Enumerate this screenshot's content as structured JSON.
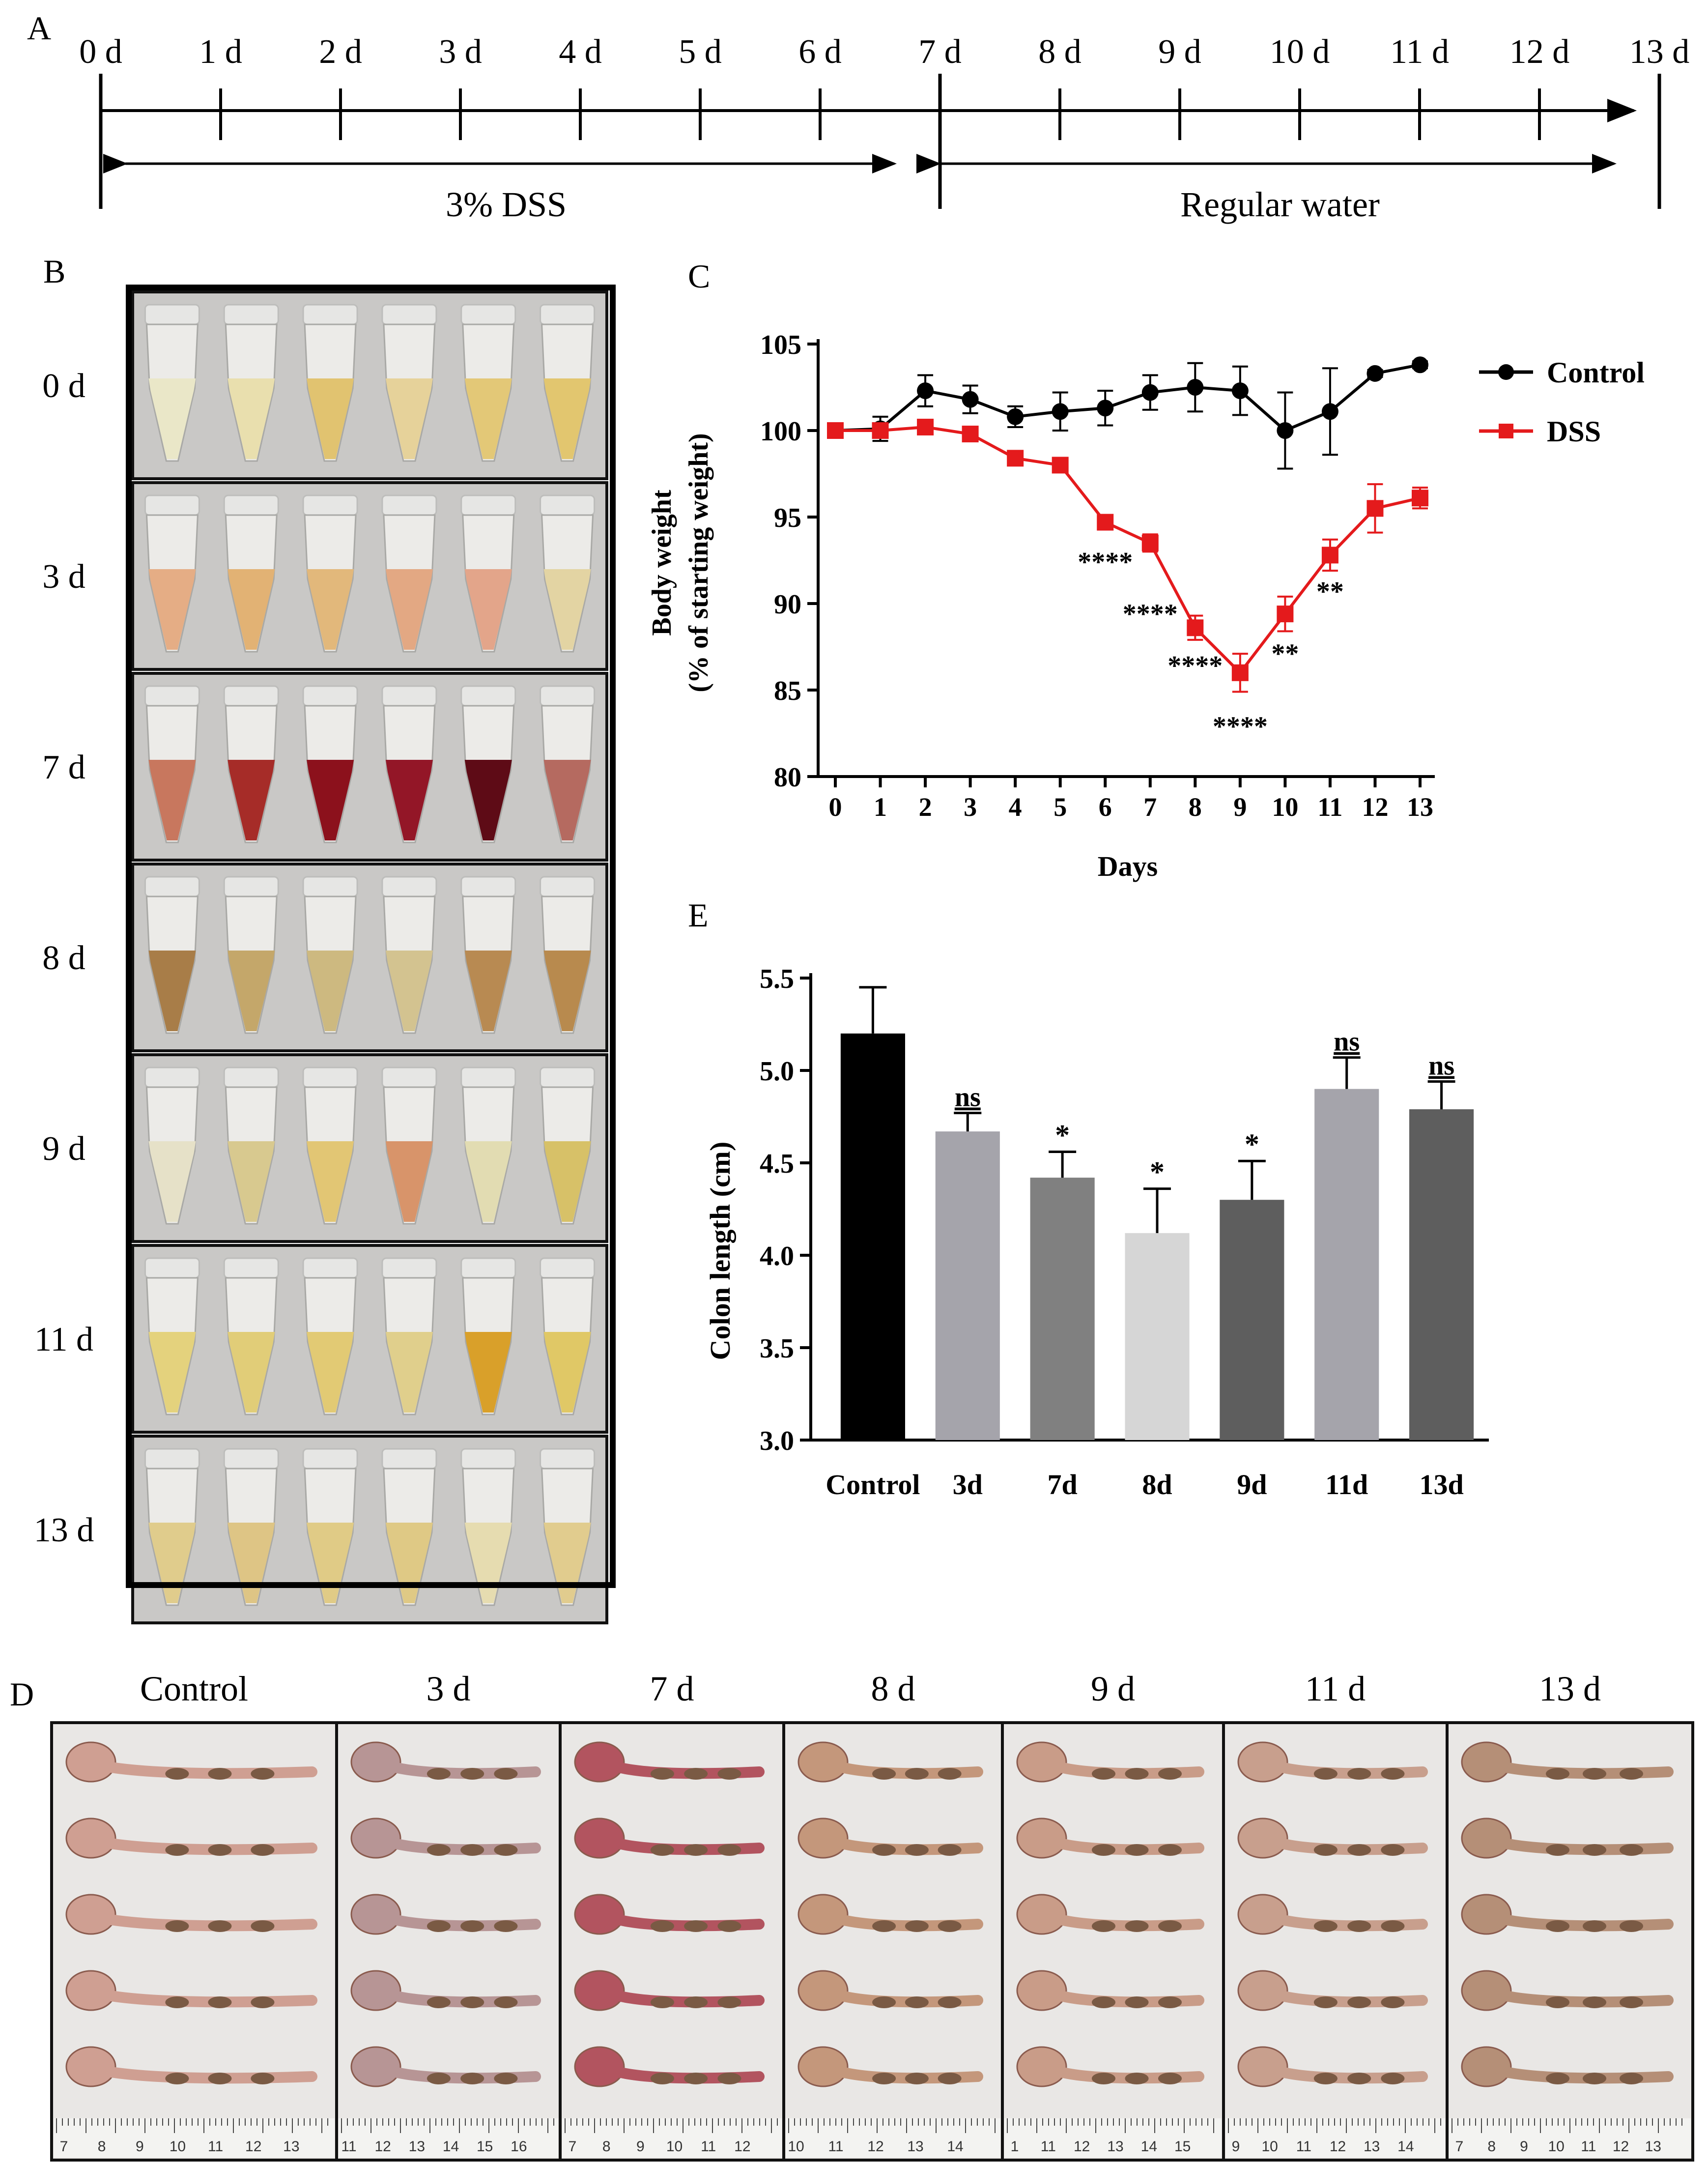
{
  "panel_labels": {
    "a": "A",
    "b": "B",
    "c": "C",
    "d": "D",
    "e": "E"
  },
  "timeline": {
    "days": [
      "0 d",
      "1 d",
      "2 d",
      "3 d",
      "4 d",
      "5 d",
      "6 d",
      "7 d",
      "8 d",
      "9 d",
      "10 d",
      "11 d",
      "12 d",
      "13 d"
    ],
    "phase1_label": "3% DSS",
    "phase2_label": "Regular water"
  },
  "tubes": {
    "rows": [
      {
        "label": "0 d",
        "colors": [
          "#eae7c8",
          "#e9dfae",
          "#e1c370",
          "#e6d29a",
          "#e3c877",
          "#e2c66f"
        ]
      },
      {
        "label": "3 d",
        "colors": [
          "#e5ad85",
          "#e2b274",
          "#e2b87b",
          "#e3a883",
          "#e3a58a",
          "#e3d4a3"
        ]
      },
      {
        "label": "7 d",
        "colors": [
          "#c8775e",
          "#a62c28",
          "#8c111c",
          "#931627",
          "#5e0b16",
          "#b56a60"
        ]
      },
      {
        "label": "8 d",
        "colors": [
          "#a87d48",
          "#c4a76a",
          "#cdb980",
          "#d3c390",
          "#b88a52",
          "#b88a4e"
        ]
      },
      {
        "label": "9 d",
        "colors": [
          "#e6e1c8",
          "#d8c98f",
          "#e2c674",
          "#d8946a",
          "#e2dcb2",
          "#d7c168"
        ]
      },
      {
        "label": "11 d",
        "colors": [
          "#e4d27d",
          "#e1cd78",
          "#e2ca74",
          "#e0cf8c",
          "#d9a02a",
          "#e0c866"
        ]
      },
      {
        "label": "13 d",
        "colors": [
          "#e0cc8c",
          "#dec585",
          "#e0cb86",
          "#dfc985",
          "#e6dcb0",
          "#e1cc8e"
        ]
      }
    ]
  },
  "colons": {
    "groups": [
      {
        "label": "Control",
        "color": "#cf9f92",
        "ruler": [
          "7",
          "8",
          "9",
          "10",
          "11",
          "12",
          "13"
        ]
      },
      {
        "label": "3 d",
        "color": "#b79595",
        "ruler": [
          "11",
          "12",
          "13",
          "14",
          "15",
          "16"
        ]
      },
      {
        "label": "7 d",
        "color": "#b2545f",
        "ruler": [
          "7",
          "8",
          "9",
          "10",
          "11",
          "12"
        ]
      },
      {
        "label": "8 d",
        "color": "#c4977b",
        "ruler": [
          "10",
          "11",
          "12",
          "13",
          "14"
        ]
      },
      {
        "label": "9 d",
        "color": "#c99c88",
        "ruler": [
          "1",
          "11",
          "12",
          "13",
          "14",
          "15"
        ]
      },
      {
        "label": "11 d",
        "color": "#c89f8d",
        "ruler": [
          "9",
          "10",
          "11",
          "12",
          "13",
          "14"
        ]
      },
      {
        "label": "13 d",
        "color": "#b58f77",
        "ruler": [
          "7",
          "8",
          "9",
          "10",
          "11",
          "12",
          "13"
        ]
      }
    ]
  },
  "colors": {
    "control_line": "#000000",
    "dss_line": "#e41a1c"
  },
  "chart_data": [
    {
      "type": "line",
      "ylabel_line1": "Body weight",
      "ylabel_line2": "(% of starting weight)",
      "xlabel": "Days",
      "x": [
        0,
        1,
        2,
        3,
        4,
        5,
        6,
        7,
        8,
        9,
        10,
        11,
        12,
        13
      ],
      "ylim": [
        80,
        105
      ],
      "yticks": [
        80,
        85,
        90,
        95,
        100,
        105
      ],
      "series": [
        {
          "name": "Control",
          "color": "#000000",
          "marker": "circle",
          "values": [
            100,
            100.1,
            102.3,
            101.8,
            100.8,
            101.1,
            101.3,
            102.2,
            102.5,
            102.3,
            100.0,
            101.1,
            103.3,
            103.8
          ],
          "errors": [
            0.3,
            0.7,
            0.9,
            0.8,
            0.6,
            1.1,
            1.0,
            1.0,
            1.4,
            1.4,
            2.2,
            2.5,
            0.2,
            0.2
          ]
        },
        {
          "name": "DSS",
          "color": "#e41a1c",
          "marker": "square",
          "values": [
            100,
            100.0,
            100.2,
            99.8,
            98.4,
            98.0,
            94.7,
            93.5,
            88.6,
            86.0,
            89.4,
            92.8,
            95.5,
            96.1
          ],
          "errors": [
            0.2,
            0.2,
            0.3,
            0.3,
            0.3,
            0.3,
            0.4,
            0.5,
            0.7,
            1.1,
            1.0,
            0.9,
            1.4,
            0.6
          ]
        }
      ],
      "annotations": [
        {
          "x": 6,
          "y": 92.5,
          "text": "****"
        },
        {
          "x": 7,
          "y": 89.5,
          "text": "****"
        },
        {
          "x": 8,
          "y": 86.5,
          "text": "****"
        },
        {
          "x": 9,
          "y": 83.0,
          "text": "****"
        },
        {
          "x": 10,
          "y": 87.2,
          "text": "**"
        },
        {
          "x": 11,
          "y": 90.8,
          "text": "**"
        }
      ],
      "legend": "top-right"
    },
    {
      "type": "bar",
      "ylabel": "Colon length (cm)",
      "categories": [
        "Control",
        "3d",
        "7d",
        "8d",
        "9d",
        "11d",
        "13d"
      ],
      "values": [
        5.2,
        4.67,
        4.42,
        4.12,
        4.3,
        4.9,
        4.79
      ],
      "errors": [
        0.25,
        0.1,
        0.14,
        0.24,
        0.21,
        0.17,
        0.15
      ],
      "significance": [
        "",
        "ns",
        "*",
        "*",
        "*",
        "ns",
        "ns"
      ],
      "bar_colors": [
        "#000000",
        "#a5a4ab",
        "#808080",
        "#d6d6d6",
        "#5e5e5e",
        "#a5a4ab",
        "#5e5e5e"
      ],
      "ylim": [
        3.0,
        5.5
      ],
      "yticks": [
        "3.0",
        "3.5",
        "4.0",
        "4.5",
        "5.0",
        "5.5"
      ]
    }
  ]
}
